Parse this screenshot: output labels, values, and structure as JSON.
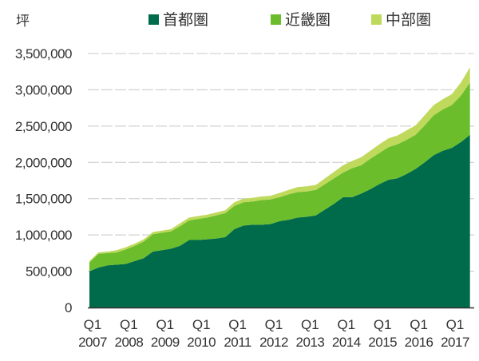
{
  "chart_data": {
    "type": "area",
    "stacked": true,
    "ylabel": "坪",
    "xlabel": "",
    "ylim": [
      0,
      3500000
    ],
    "yticks": [
      "0",
      "500,000",
      "1,000,000",
      "1,500,000",
      "2,000,000",
      "2,500,000",
      "3,000,000",
      "3,500,000"
    ],
    "ytick_values": [
      0,
      500000,
      1000000,
      1500000,
      2000000,
      2500000,
      3000000,
      3500000
    ],
    "grid": true,
    "legend_position": "top",
    "xtick_labels": [
      {
        "q": "Q1",
        "year": "2007"
      },
      {
        "q": "Q1",
        "year": "2008"
      },
      {
        "q": "Q1",
        "year": "2009"
      },
      {
        "q": "Q1",
        "year": "2010"
      },
      {
        "q": "Q1",
        "year": "2011"
      },
      {
        "q": "Q1",
        "year": "2012"
      },
      {
        "q": "Q1",
        "year": "2013"
      },
      {
        "q": "Q1",
        "year": "2014"
      },
      {
        "q": "Q1",
        "year": "2015"
      },
      {
        "q": "Q1",
        "year": "2016"
      },
      {
        "q": "Q1",
        "year": "2017"
      }
    ],
    "x": [
      "2007Q1",
      "2007Q2",
      "2007Q3",
      "2007Q4",
      "2008Q1",
      "2008Q2",
      "2008Q3",
      "2008Q4",
      "2009Q1",
      "2009Q2",
      "2009Q3",
      "2009Q4",
      "2010Q1",
      "2010Q2",
      "2010Q3",
      "2010Q4",
      "2011Q1",
      "2011Q2",
      "2011Q3",
      "2011Q4",
      "2012Q1",
      "2012Q2",
      "2012Q3",
      "2012Q4",
      "2013Q1",
      "2013Q2",
      "2013Q3",
      "2013Q4",
      "2014Q1",
      "2014Q2",
      "2014Q3",
      "2014Q4",
      "2015Q1",
      "2015Q2",
      "2015Q3",
      "2015Q4",
      "2016Q1",
      "2016Q2",
      "2016Q3",
      "2016Q4",
      "2017Q1",
      "2017Q2",
      "2017Q3"
    ],
    "series": [
      {
        "name": "首都圏",
        "color": "#006b4a",
        "values": [
          500000,
          550000,
          580000,
          590000,
          600000,
          640000,
          680000,
          770000,
          790000,
          810000,
          850000,
          930000,
          930000,
          940000,
          950000,
          970000,
          1080000,
          1130000,
          1140000,
          1140000,
          1150000,
          1190000,
          1210000,
          1240000,
          1250000,
          1270000,
          1350000,
          1430000,
          1520000,
          1520000,
          1570000,
          1630000,
          1700000,
          1760000,
          1780000,
          1840000,
          1910000,
          2000000,
          2100000,
          2160000,
          2200000,
          2280000,
          2380000
        ]
      },
      {
        "name": "近畿圏",
        "color": "#6cbd2c",
        "values": [
          120000,
          190000,
          170000,
          170000,
          200000,
          210000,
          230000,
          240000,
          240000,
          240000,
          270000,
          270000,
          290000,
          300000,
          320000,
          330000,
          320000,
          320000,
          320000,
          340000,
          340000,
          330000,
          350000,
          350000,
          350000,
          350000,
          350000,
          350000,
          340000,
          400000,
          390000,
          420000,
          430000,
          450000,
          470000,
          470000,
          470000,
          510000,
          550000,
          570000,
          590000,
          640000,
          720000
        ]
      },
      {
        "name": "中部圏",
        "color": "#bfd95c",
        "values": [
          20000,
          20000,
          20000,
          30000,
          30000,
          30000,
          30000,
          30000,
          30000,
          30000,
          40000,
          40000,
          40000,
          40000,
          40000,
          40000,
          50000,
          50000,
          50000,
          50000,
          50000,
          60000,
          60000,
          70000,
          70000,
          70000,
          80000,
          90000,
          100000,
          100000,
          110000,
          110000,
          120000,
          120000,
          120000,
          130000,
          130000,
          140000,
          140000,
          140000,
          150000,
          180000,
          210000
        ]
      }
    ]
  }
}
